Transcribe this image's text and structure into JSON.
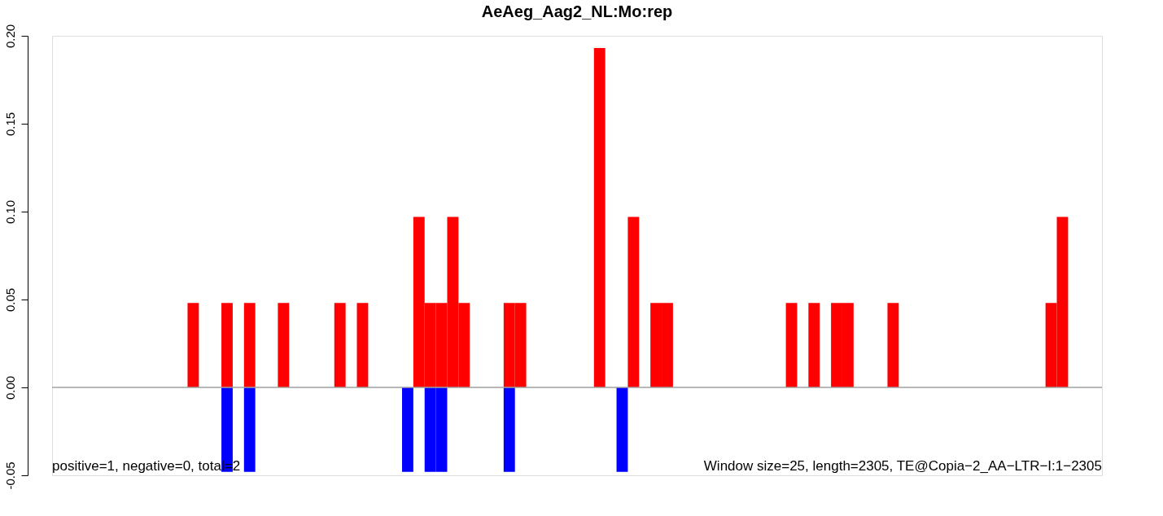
{
  "chart_data": {
    "type": "bar",
    "title": "AeAeg_Aag2_NL:Mo:rep",
    "categories": [
      null,
      null,
      null,
      null,
      null,
      null,
      null,
      null,
      null,
      null,
      null,
      null,
      null,
      null,
      null,
      null,
      null,
      null,
      null,
      null,
      null,
      null,
      null,
      null,
      null,
      null,
      null,
      null,
      null,
      null,
      null,
      null,
      null,
      null,
      null,
      null,
      null,
      null,
      null,
      null,
      null,
      null,
      null,
      null,
      null,
      null,
      null,
      null,
      null,
      null,
      null,
      null,
      null,
      null,
      null,
      null,
      null,
      null,
      null,
      null,
      null,
      null,
      null,
      null,
      null,
      null,
      null,
      null,
      null,
      null,
      null,
      null,
      null,
      null,
      null,
      null,
      null,
      null,
      null,
      null,
      null,
      null,
      null,
      null,
      null,
      null,
      null,
      null,
      null,
      null,
      null,
      null,
      null
    ],
    "series": [
      {
        "color": "#ff0000",
        "values": [
          null,
          null,
          null,
          null,
          null,
          null,
          null,
          null,
          null,
          null,
          null,
          null,
          0.048,
          null,
          null,
          0.048,
          null,
          0.048,
          null,
          null,
          0.048,
          null,
          null,
          null,
          null,
          0.048,
          null,
          0.048,
          null,
          null,
          null,
          null,
          0.097,
          0.048,
          0.048,
          0.097,
          0.048,
          null,
          null,
          null,
          0.048,
          0.048,
          null,
          null,
          null,
          null,
          null,
          null,
          0.193,
          null,
          null,
          0.097,
          null,
          0.048,
          0.048,
          null,
          null,
          null,
          null,
          null,
          null,
          null,
          null,
          null,
          null,
          0.048,
          null,
          0.048,
          null,
          0.048,
          0.048,
          null,
          null,
          null,
          0.048,
          null,
          null,
          null,
          null,
          null,
          null,
          null,
          null,
          null,
          null,
          null,
          null,
          null,
          0.048,
          0.097,
          null,
          null,
          null
        ]
      },
      {
        "color": "#0000ff",
        "values": [
          null,
          null,
          null,
          null,
          null,
          null,
          null,
          null,
          null,
          null,
          null,
          null,
          null,
          null,
          null,
          -0.048,
          null,
          -0.048,
          null,
          null,
          null,
          null,
          null,
          null,
          null,
          null,
          null,
          null,
          null,
          null,
          null,
          -0.048,
          null,
          -0.048,
          -0.048,
          null,
          null,
          null,
          null,
          null,
          -0.048,
          null,
          null,
          null,
          null,
          null,
          null,
          null,
          null,
          null,
          -0.048,
          null,
          null,
          null,
          null,
          null,
          null,
          null,
          null,
          null,
          null,
          null,
          null,
          null,
          null,
          null,
          null,
          null,
          null,
          null,
          null,
          null,
          null,
          null,
          null,
          null,
          null,
          null,
          null,
          null,
          null,
          null,
          null,
          null,
          null,
          null,
          null,
          null,
          null,
          null,
          null,
          null,
          null
        ]
      }
    ],
    "ylim": [
      -0.05,
      0.2
    ],
    "yticks": [
      -0.05,
      {
        "value": 0,
        "label": "0.00"
      },
      0.05,
      {
        "value": 0.1,
        "label": "0.10"
      },
      0.15,
      {
        "value": 0.2,
        "label": "0.20"
      }
    ],
    "ref_lines": [
      {
        "axis": "y",
        "value": 0,
        "color": "#a0a0a0"
      }
    ],
    "grid": false,
    "annotations": [
      "positive=1, negative=0, total=2",
      "Window size=25, length=2305, TE@Copia−2_AA−LTR−I:1−2305"
    ]
  }
}
